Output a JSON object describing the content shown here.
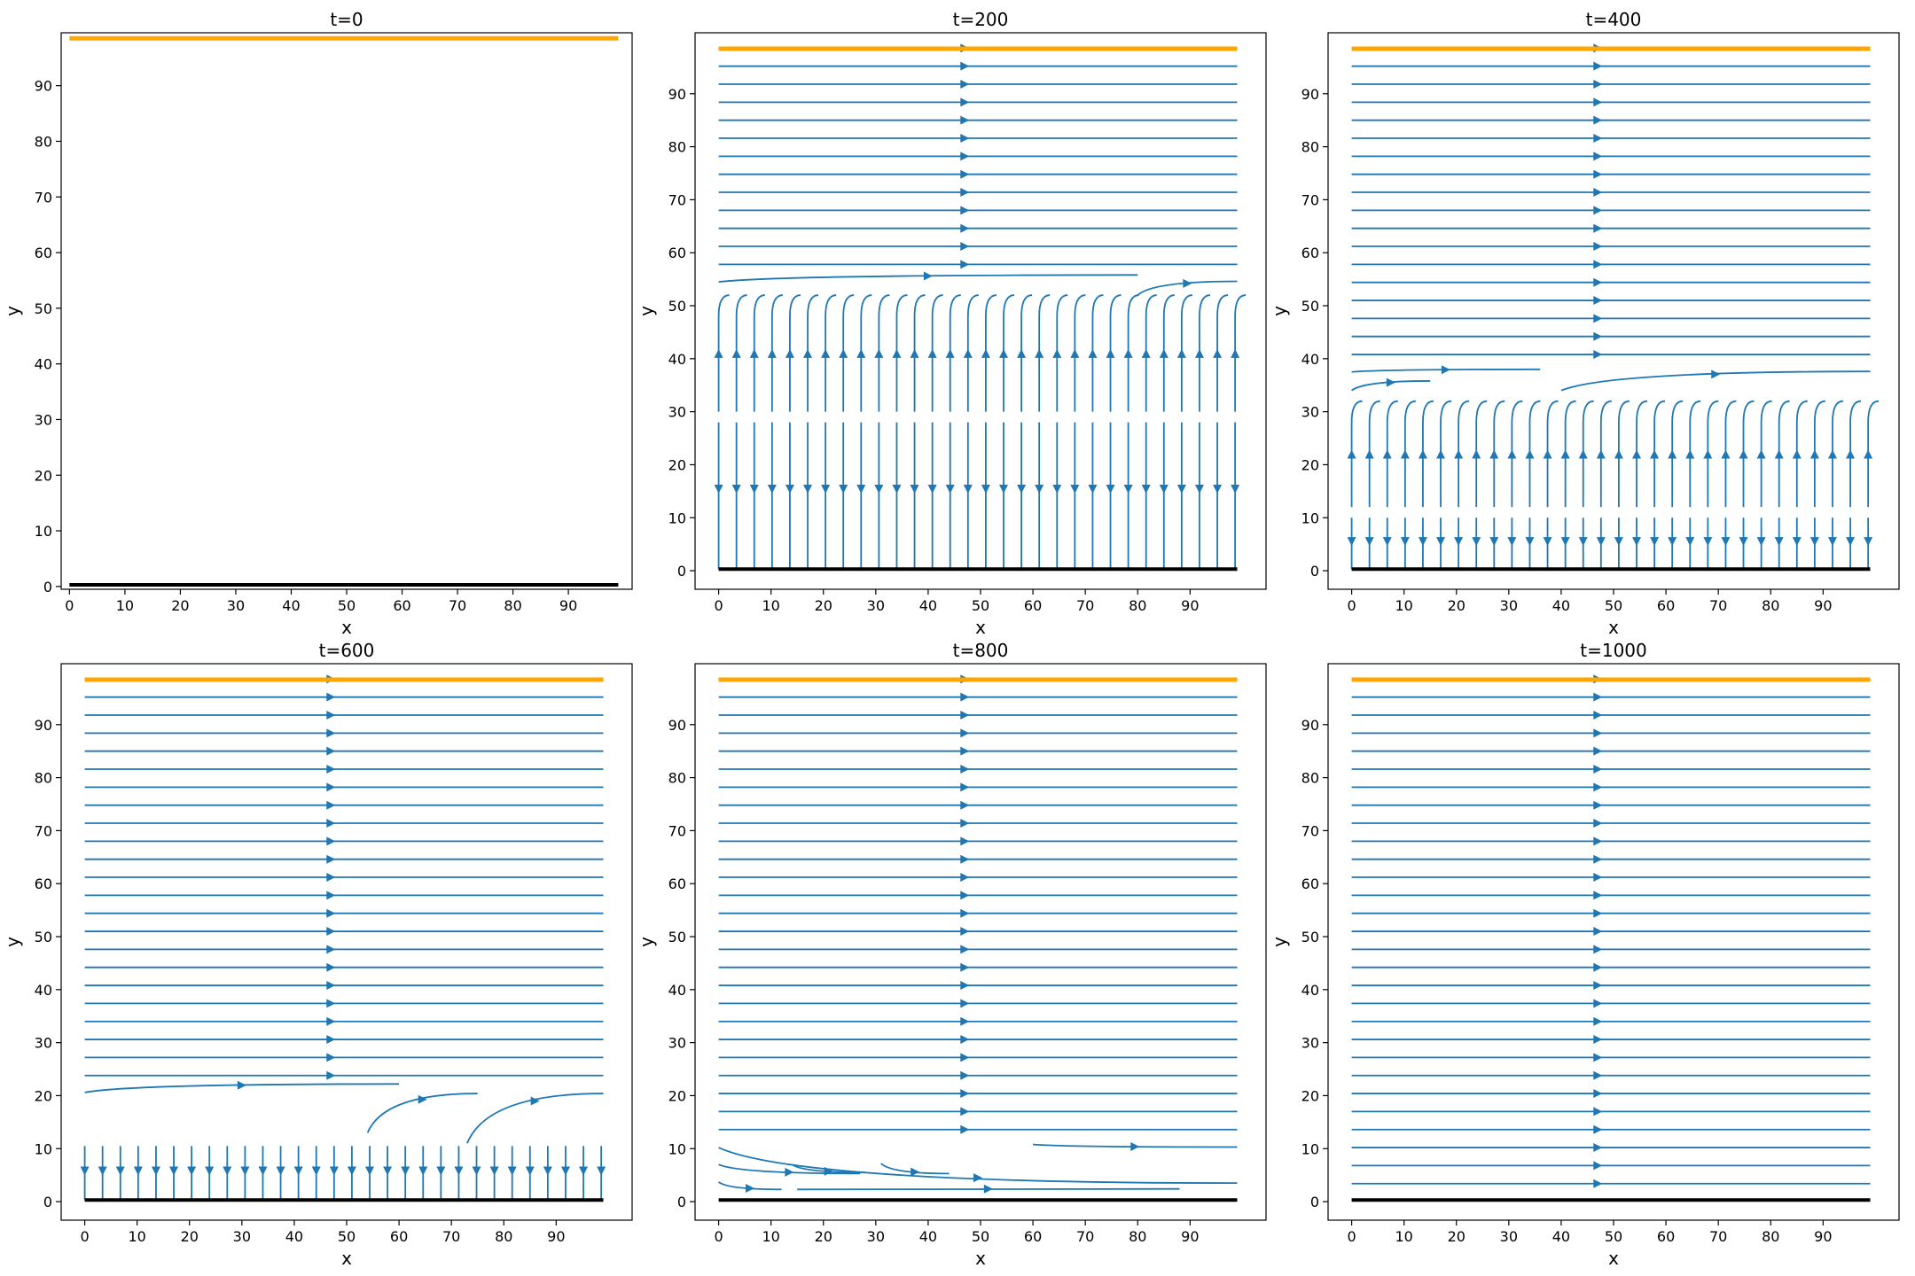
{
  "colors": {
    "stream": "#1f77b4",
    "top_wall": "#ffa500",
    "bottom_wall": "#000000",
    "frame": "#000000"
  },
  "chart_data": [
    {
      "type": "streamplot",
      "title": "t=0",
      "xlabel": "x",
      "ylabel": "y",
      "xlim": [
        -1.5,
        101.5
      ],
      "ylim": [
        -0.5,
        99.5
      ],
      "xticks": [
        0,
        10,
        20,
        30,
        40,
        50,
        60,
        70,
        80,
        90
      ],
      "yticks": [
        0,
        10,
        20,
        30,
        40,
        50,
        60,
        70,
        80,
        90
      ],
      "top_wall_y": 98.5,
      "bottom_wall_y": 0.3,
      "uniform_flow_rows": [],
      "vertical_flow": []
    },
    {
      "type": "streamplot",
      "title": "t=200",
      "xlabel": "x",
      "ylabel": "y",
      "xlim": [
        -4.5,
        104.5
      ],
      "ylim": [
        -3.5,
        101.5
      ],
      "xticks": [
        0,
        10,
        20,
        30,
        40,
        50,
        60,
        70,
        80,
        90
      ],
      "yticks": [
        0,
        10,
        20,
        30,
        40,
        50,
        60,
        70,
        80,
        90
      ],
      "top_wall_y": 98.5,
      "bottom_wall_y": 0.3,
      "uniform_flow_rows": [
        98.6,
        95.2,
        91.8,
        88.4,
        85.0,
        81.6,
        78.2,
        74.8,
        71.4,
        68.0,
        64.6,
        61.2,
        57.8
      ],
      "curved_flow_rows": [
        [
          0,
          54.5,
          80,
          55.8
        ],
        [
          80,
          52,
          99,
          54.6
        ]
      ],
      "vertical_flow": {
        "x_start": 0,
        "x_step": 3.4,
        "count": 30,
        "y_from": 0.3,
        "y_to": 52,
        "gap_at": 30
      }
    },
    {
      "type": "streamplot",
      "title": "t=400",
      "xlabel": "x",
      "ylabel": "y",
      "xlim": [
        -4.5,
        104.5
      ],
      "ylim": [
        -3.5,
        101.5
      ],
      "xticks": [
        0,
        10,
        20,
        30,
        40,
        50,
        60,
        70,
        80,
        90
      ],
      "yticks": [
        0,
        10,
        20,
        30,
        40,
        50,
        60,
        70,
        80,
        90
      ],
      "top_wall_y": 98.5,
      "bottom_wall_y": 0.3,
      "uniform_flow_rows": [
        98.6,
        95.2,
        91.8,
        88.4,
        85.0,
        81.6,
        78.2,
        74.8,
        71.4,
        68.0,
        64.6,
        61.2,
        57.8,
        54.4,
        51.0,
        47.6,
        44.2,
        40.8
      ],
      "curved_flow_rows": [
        [
          0,
          37.5,
          36,
          38
        ],
        [
          0,
          34,
          15,
          35.8
        ],
        [
          40,
          34,
          99,
          37.6
        ]
      ],
      "vertical_flow": {
        "x_start": 0,
        "x_step": 3.4,
        "count": 30,
        "y_from": 0.3,
        "y_to": 32,
        "gap_at": 12
      }
    },
    {
      "type": "streamplot",
      "title": "t=600",
      "xlabel": "x",
      "ylabel": "y",
      "xlim": [
        -4.5,
        104.5
      ],
      "ylim": [
        -3.5,
        101.5
      ],
      "xticks": [
        0,
        10,
        20,
        30,
        40,
        50,
        60,
        70,
        80,
        90
      ],
      "yticks": [
        0,
        10,
        20,
        30,
        40,
        50,
        60,
        70,
        80,
        90
      ],
      "top_wall_y": 98.5,
      "bottom_wall_y": 0.3,
      "uniform_flow_rows": [
        98.6,
        95.2,
        91.8,
        88.4,
        85.0,
        81.6,
        78.2,
        74.8,
        71.4,
        68.0,
        64.6,
        61.2,
        57.8,
        54.4,
        51.0,
        47.6,
        44.2,
        40.8,
        37.4,
        34.0,
        30.6,
        27.2,
        23.8
      ],
      "curved_flow_rows": [
        [
          0,
          20.6,
          60,
          22.2
        ],
        [
          54,
          13,
          75,
          20.4
        ],
        [
          73,
          11,
          99,
          20.4
        ]
      ],
      "vertical_flow": {
        "x_start": 0,
        "x_step": 3.4,
        "count": 30,
        "y_from": 0.3,
        "y_to": 10.5,
        "gap_at": null
      }
    },
    {
      "type": "streamplot",
      "title": "t=800",
      "xlabel": "x",
      "ylabel": "y",
      "xlim": [
        -4.5,
        104.5
      ],
      "ylim": [
        -3.5,
        101.5
      ],
      "xticks": [
        0,
        10,
        20,
        30,
        40,
        50,
        60,
        70,
        80,
        90
      ],
      "yticks": [
        0,
        10,
        20,
        30,
        40,
        50,
        60,
        70,
        80,
        90
      ],
      "top_wall_y": 98.5,
      "bottom_wall_y": 0.3,
      "uniform_flow_rows": [
        98.6,
        95.2,
        91.8,
        88.4,
        85.0,
        81.6,
        78.2,
        74.8,
        71.4,
        68.0,
        64.6,
        61.2,
        57.8,
        54.4,
        51.0,
        47.6,
        44.2,
        40.8,
        37.4,
        34.0,
        30.6,
        27.2,
        23.8,
        20.4,
        17.0,
        13.6
      ],
      "curved_flow_rows": [
        [
          0,
          10.2,
          99,
          3.5
        ],
        [
          60,
          10.8,
          99,
          10.3
        ],
        [
          0,
          7,
          27,
          5.3
        ],
        [
          14,
          7,
          28,
          5.5
        ],
        [
          31,
          7.2,
          44,
          5.3
        ],
        [
          0,
          3.7,
          12,
          2.3
        ],
        [
          15,
          2.3,
          88,
          2.4
        ]
      ],
      "vertical_flow": []
    },
    {
      "type": "streamplot",
      "title": "t=1000",
      "xlabel": "x",
      "ylabel": "y",
      "xlim": [
        -4.5,
        104.5
      ],
      "ylim": [
        -3.5,
        101.5
      ],
      "xticks": [
        0,
        10,
        20,
        30,
        40,
        50,
        60,
        70,
        80,
        90
      ],
      "yticks": [
        0,
        10,
        20,
        30,
        40,
        50,
        60,
        70,
        80,
        90
      ],
      "top_wall_y": 98.5,
      "bottom_wall_y": 0.3,
      "uniform_flow_rows": [
        98.6,
        95.2,
        91.8,
        88.4,
        85.0,
        81.6,
        78.2,
        74.8,
        71.4,
        68.0,
        64.6,
        61.2,
        57.8,
        54.4,
        51.0,
        47.6,
        44.2,
        40.8,
        37.4,
        34.0,
        30.6,
        27.2,
        23.8,
        20.4,
        17.0,
        13.6,
        10.2,
        6.8,
        3.4
      ],
      "curved_flow_rows": [],
      "vertical_flow": []
    }
  ]
}
